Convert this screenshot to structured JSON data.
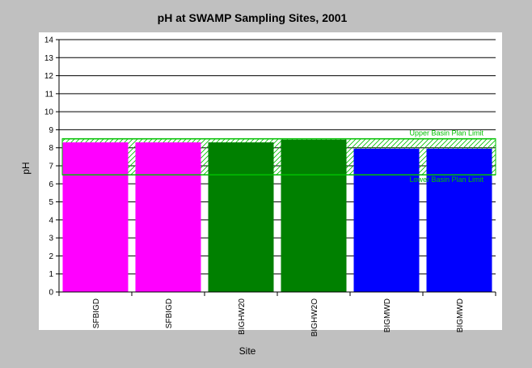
{
  "chart_data": {
    "type": "bar",
    "title": "pH at SWAMP Sampling Sites, 2001",
    "xlabel": "Site",
    "ylabel": "pH",
    "ylim": [
      0,
      14
    ],
    "yticks": [
      0,
      1,
      2,
      3,
      4,
      5,
      6,
      7,
      8,
      9,
      10,
      11,
      12,
      13,
      14
    ],
    "grid": true,
    "categories": [
      "SFBIGD",
      "SFBIGD",
      "BIGHW20",
      "BIGHW2O",
      "BIGMWD",
      "BIGMWD"
    ],
    "values": [
      8.3,
      8.3,
      8.3,
      8.45,
      7.95,
      7.95
    ],
    "bar_colors": [
      "#ff00ff",
      "#ff00ff",
      "#008000",
      "#008000",
      "#0000ff",
      "#0000ff"
    ],
    "limits": {
      "upper": {
        "label": "Upper Basin Plan Limit",
        "value": 8.5
      },
      "lower": {
        "label": "Lower Basin Plan Limit",
        "value": 6.5
      },
      "color": "#00c000"
    }
  }
}
